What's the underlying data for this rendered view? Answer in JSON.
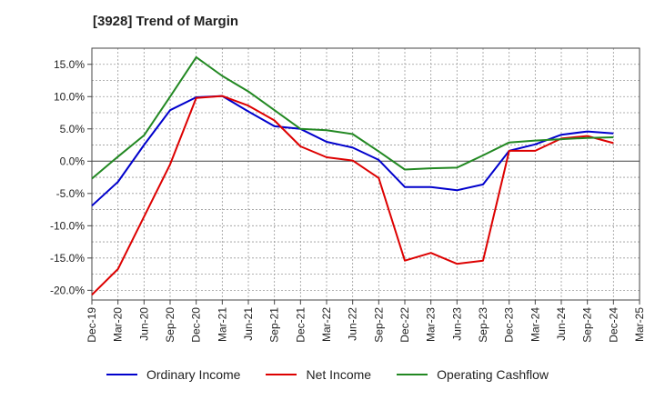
{
  "chart_data": {
    "type": "line",
    "title": "[3928]  Trend of Margin",
    "x": [
      "Dec-19",
      "Mar-20",
      "Jun-20",
      "Sep-20",
      "Dec-20",
      "Mar-21",
      "Jun-21",
      "Sep-21",
      "Dec-21",
      "Mar-22",
      "Jun-22",
      "Sep-22",
      "Dec-22",
      "Mar-23",
      "Jun-23",
      "Sep-23",
      "Dec-23",
      "Mar-24",
      "Jun-24",
      "Sep-24",
      "Dec-24",
      "Mar-25"
    ],
    "y_ticks": [
      "15.0%",
      "10.0%",
      "5.0%",
      "0.0%",
      "-5.0%",
      "-10.0%",
      "-15.0%",
      "-20.0%"
    ],
    "ylim": [
      -21.5,
      17.5
    ],
    "grid": true,
    "legend_position": "bottom",
    "series": [
      {
        "name": "Ordinary Income",
        "color": "#0000cc",
        "values": [
          -6.9,
          -3.2,
          2.5,
          7.9,
          9.9,
          10.1,
          7.7,
          5.4,
          5.0,
          3.0,
          2.1,
          0.2,
          -4.0,
          -4.0,
          -4.5,
          -3.6,
          1.6,
          2.6,
          4.1,
          4.6,
          4.3,
          null
        ]
      },
      {
        "name": "Net Income",
        "color": "#dd0000",
        "values": [
          -20.7,
          -16.7,
          -8.6,
          -0.5,
          9.8,
          10.1,
          8.6,
          6.3,
          2.3,
          0.6,
          0.1,
          -2.6,
          -15.4,
          -14.2,
          -15.9,
          -15.4,
          1.6,
          1.6,
          3.5,
          3.9,
          2.8,
          null
        ]
      },
      {
        "name": "Operating Cashflow",
        "color": "#228822",
        "values": [
          -2.7,
          0.7,
          4.0,
          10.0,
          16.1,
          13.2,
          10.8,
          7.9,
          5.0,
          4.8,
          4.2,
          1.5,
          -1.3,
          -1.1,
          -1.0,
          0.9,
          2.9,
          3.2,
          3.4,
          3.6,
          3.7,
          null
        ]
      }
    ]
  }
}
